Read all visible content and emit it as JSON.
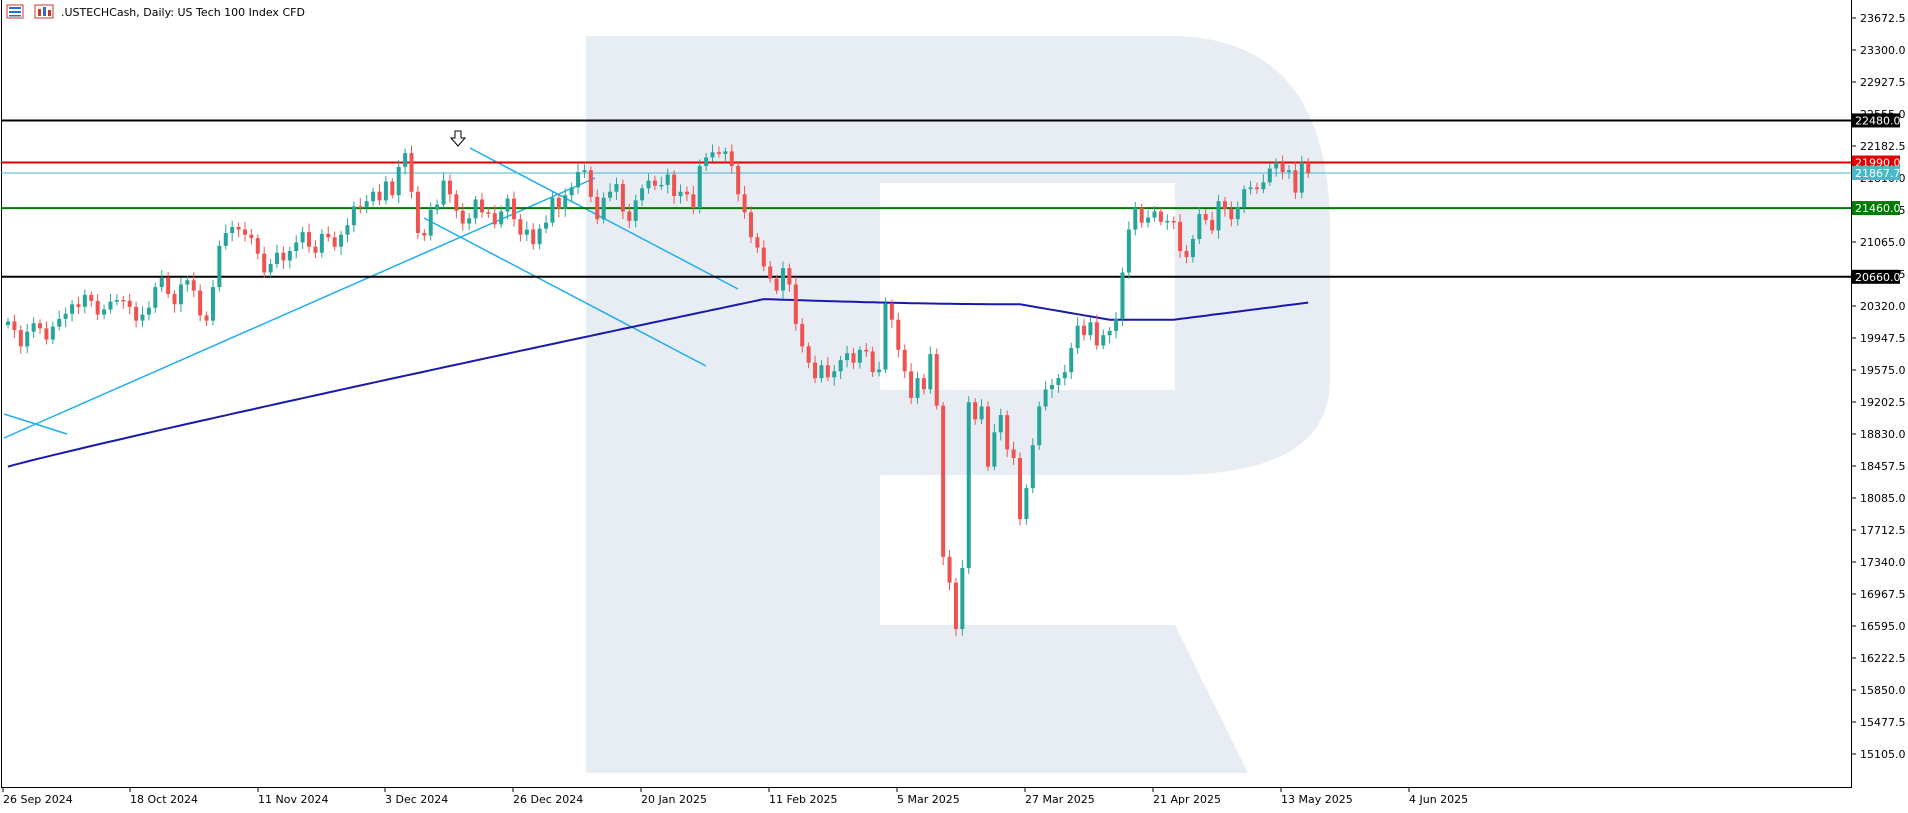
{
  "header": {
    "symbol": ".USTECHCash",
    "timeframe": "Daily",
    "description": "US Tech 100 Index CFD",
    "title_text": ".USTECHCash, Daily:  US Tech 100 Index CFD",
    "icons": [
      "list-icon",
      "chart-style-icon"
    ]
  },
  "colors": {
    "background": "#ffffff",
    "bull": "#26a69a",
    "bear": "#ef5350",
    "moving_average": "#1a1aa8",
    "trendline": "#1eaef0",
    "resistance_black": "#000000",
    "resistance_red": "#e00000",
    "support_green": "#007a00",
    "current_price": "#4ab8c8",
    "watermark": "#e8edf4",
    "axis_text": "#000000"
  },
  "chart_data": {
    "type": "candlestick",
    "title": ".USTECHCash, Daily:  US Tech 100 Index CFD",
    "ylim": [
      14850,
      23800
    ],
    "y_tick_labels": [
      "23672.5",
      "23300.0",
      "22927.5",
      "22555.0",
      "22182.5",
      "21810.0",
      "21437.5",
      "21065.0",
      "20692.5",
      "20320.0",
      "19947.5",
      "19575.0",
      "19202.5",
      "18830.0",
      "18457.5",
      "18085.0",
      "17712.5",
      "17340.0",
      "16967.5",
      "16595.0",
      "16222.5",
      "15850.0",
      "15477.5",
      "15105.0"
    ],
    "x_tick_labels": [
      "26 Sep 2024",
      "18 Oct 2024",
      "11 Nov 2024",
      "3 Dec 2024",
      "26 Dec 2024",
      "20 Jan 2025",
      "11 Feb 2025",
      "5 Mar 2025",
      "27 Mar 2025",
      "21 Apr 2025",
      "13 May 2025",
      "4 Jun 2025"
    ],
    "horizontal_levels": [
      {
        "value": 22480.0,
        "label": "22480.0",
        "color": "#000000"
      },
      {
        "value": 21990.0,
        "label": "21990.0",
        "color": "#e00000"
      },
      {
        "value": 21867.7,
        "label": "21867.7",
        "color": "#4ab8c8"
      },
      {
        "value": 21460.0,
        "label": "21460.0",
        "color": "#007a00"
      },
      {
        "value": 20660.0,
        "label": "20660.0",
        "color": "#000000"
      }
    ],
    "closes": [
      20140,
      20040,
      19850,
      20020,
      20120,
      20060,
      19930,
      20080,
      20170,
      20230,
      20340,
      20310,
      20450,
      20380,
      20220,
      20280,
      20370,
      20390,
      20380,
      20310,
      20150,
      20220,
      20300,
      20540,
      20650,
      20460,
      20340,
      20570,
      20620,
      20500,
      20210,
      20150,
      20540,
      21020,
      21170,
      21240,
      21210,
      21150,
      21110,
      20930,
      20710,
      20810,
      20940,
      20850,
      20960,
      21060,
      21180,
      21010,
      20940,
      21160,
      21120,
      21010,
      21150,
      21260,
      21480,
      21470,
      21540,
      21650,
      21550,
      21770,
      21610,
      21940,
      22100,
      21650,
      21170,
      21140,
      21440,
      21500,
      21780,
      21620,
      21430,
      21280,
      21340,
      21560,
      21410,
      21400,
      21270,
      21420,
      21570,
      21330,
      21150,
      21210,
      21040,
      21220,
      21290,
      21580,
      21450,
      21610,
      21700,
      21880,
      21900,
      21590,
      21330,
      21580,
      21650,
      21740,
      21420,
      21310,
      21550,
      21690,
      21780,
      21720,
      21730,
      21850,
      21600,
      21650,
      21620,
      21460,
      21950,
      22050,
      22110,
      22090,
      22120,
      21950,
      21620,
      21410,
      21120,
      21000,
      20780,
      20640,
      20500,
      20760,
      20570,
      20110,
      19850,
      19660,
      19480,
      19630,
      19490,
      19560,
      19690,
      19770,
      19660,
      19810,
      19790,
      19550,
      19580,
      20350,
      20160,
      19810,
      19560,
      19250,
      19480,
      19350,
      19760,
      19160,
      17400,
      17100,
      16560,
      17270,
      19200,
      19000,
      19150,
      18450,
      18850,
      19050,
      18650,
      18550,
      17840,
      18200,
      18700,
      19150,
      19350,
      19400,
      19480,
      19550,
      19830,
      20090,
      19980,
      20130,
      19860,
      19980,
      20030,
      20170,
      20710,
      21210,
      21460,
      21290,
      21350,
      21420,
      21300,
      21310,
      21300,
      20960,
      20890,
      21100,
      21390,
      21320,
      21200,
      21540,
      21450,
      21330,
      21470,
      21680,
      21700,
      21680,
      21760,
      21920,
      21990,
      21880,
      21900,
      21640,
      21990,
      21870
    ],
    "moving_average_endpoints": [
      18450,
      20360
    ],
    "annotations": [
      "down-arrow-marker",
      "trendline-channel-upper",
      "trendline-channel-lower",
      "trendline-support"
    ]
  }
}
